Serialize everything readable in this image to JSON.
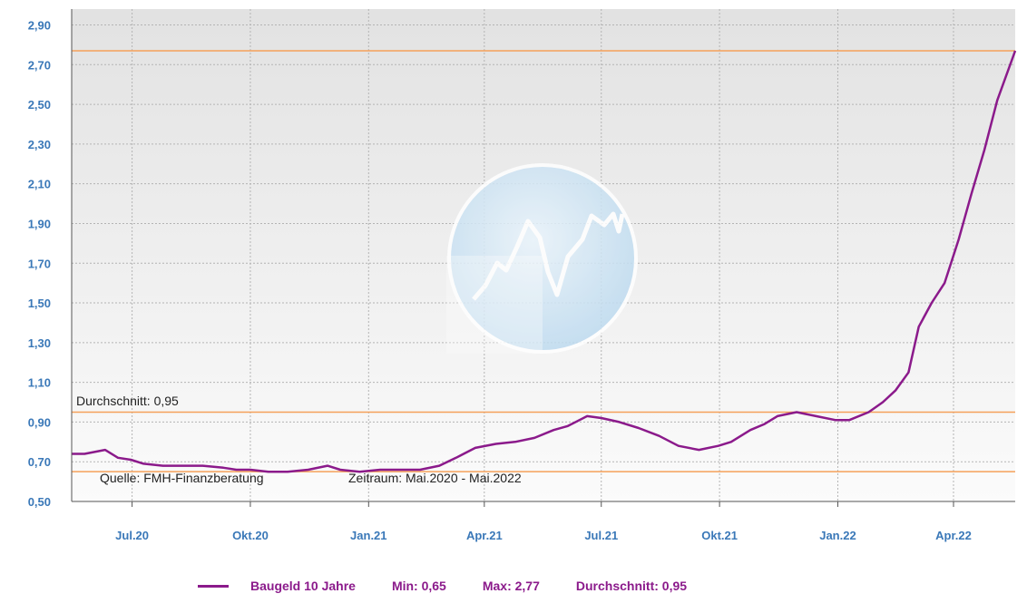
{
  "chart_data": {
    "type": "line",
    "title": "",
    "xlabel": "",
    "ylabel": "",
    "x_ticks": [
      "Jul.20",
      "Okt.20",
      "Jan.21",
      "Apr.21",
      "Jul.21",
      "Okt.21",
      "Jan.22",
      "Apr.22"
    ],
    "y_ticks": [
      "2,90",
      "2,70",
      "2,50",
      "2,30",
      "2,10",
      "1,90",
      "1,70",
      "1,50",
      "1,30",
      "1,10",
      "0,90",
      "0,70",
      "0,50"
    ],
    "ylim": [
      0.5,
      2.98
    ],
    "xlim": [
      "2020-05-15",
      "2022-05-19"
    ],
    "grid": true,
    "colors": {
      "series": "#8b1a8b",
      "reference_lines": "#f5a05a",
      "tick_labels": "#3a78b8"
    },
    "series": [
      {
        "name": "Baugeld 10 Jahre",
        "x": [
          "2020-05-15",
          "2020-05-25",
          "2020-06-10",
          "2020-06-20",
          "2020-06-30",
          "2020-07-10",
          "2020-07-25",
          "2020-08-10",
          "2020-08-25",
          "2020-09-10",
          "2020-09-20",
          "2020-10-01",
          "2020-10-15",
          "2020-10-30",
          "2020-11-15",
          "2020-11-30",
          "2020-12-10",
          "2020-12-25",
          "2021-01-10",
          "2021-01-25",
          "2021-02-10",
          "2021-02-25",
          "2021-03-10",
          "2021-03-25",
          "2021-04-10",
          "2021-04-25",
          "2021-05-10",
          "2021-05-25",
          "2021-06-05",
          "2021-06-20",
          "2021-07-01",
          "2021-07-15",
          "2021-07-30",
          "2021-08-15",
          "2021-08-30",
          "2021-09-15",
          "2021-09-30",
          "2021-10-10",
          "2021-10-25",
          "2021-11-05",
          "2021-11-15",
          "2021-11-30",
          "2021-12-15",
          "2021-12-30",
          "2022-01-10",
          "2022-01-25",
          "2022-02-05",
          "2022-02-15",
          "2022-02-25",
          "2022-03-05",
          "2022-03-15",
          "2022-03-25",
          "2022-04-05",
          "2022-04-15",
          "2022-04-25",
          "2022-05-05",
          "2022-05-19"
        ],
        "values": [
          0.74,
          0.74,
          0.76,
          0.72,
          0.71,
          0.69,
          0.68,
          0.68,
          0.68,
          0.67,
          0.66,
          0.66,
          0.65,
          0.65,
          0.66,
          0.68,
          0.66,
          0.65,
          0.66,
          0.66,
          0.66,
          0.68,
          0.72,
          0.77,
          0.79,
          0.8,
          0.82,
          0.86,
          0.88,
          0.93,
          0.92,
          0.9,
          0.87,
          0.83,
          0.78,
          0.76,
          0.78,
          0.8,
          0.86,
          0.89,
          0.93,
          0.95,
          0.93,
          0.91,
          0.91,
          0.95,
          1.0,
          1.06,
          1.15,
          1.38,
          1.5,
          1.6,
          1.82,
          2.05,
          2.27,
          2.52,
          2.77
        ]
      }
    ],
    "reference_lines": [
      {
        "value": 2.77,
        "label": ""
      },
      {
        "value": 0.95,
        "label": "Durchschnitt: 0,95"
      },
      {
        "value": 0.65,
        "label": ""
      }
    ],
    "annotations": {
      "source": "Quelle: FMH-Finanzberatung",
      "period": "Zeitraum: Mai.2020 - Mai.2022"
    },
    "legend": {
      "position": "bottom",
      "series_label": "Baugeld 10 Jahre",
      "min": "Min: 0,65",
      "max": "Max: 2,77",
      "avg": "Durchschnitt: 0,95"
    }
  }
}
